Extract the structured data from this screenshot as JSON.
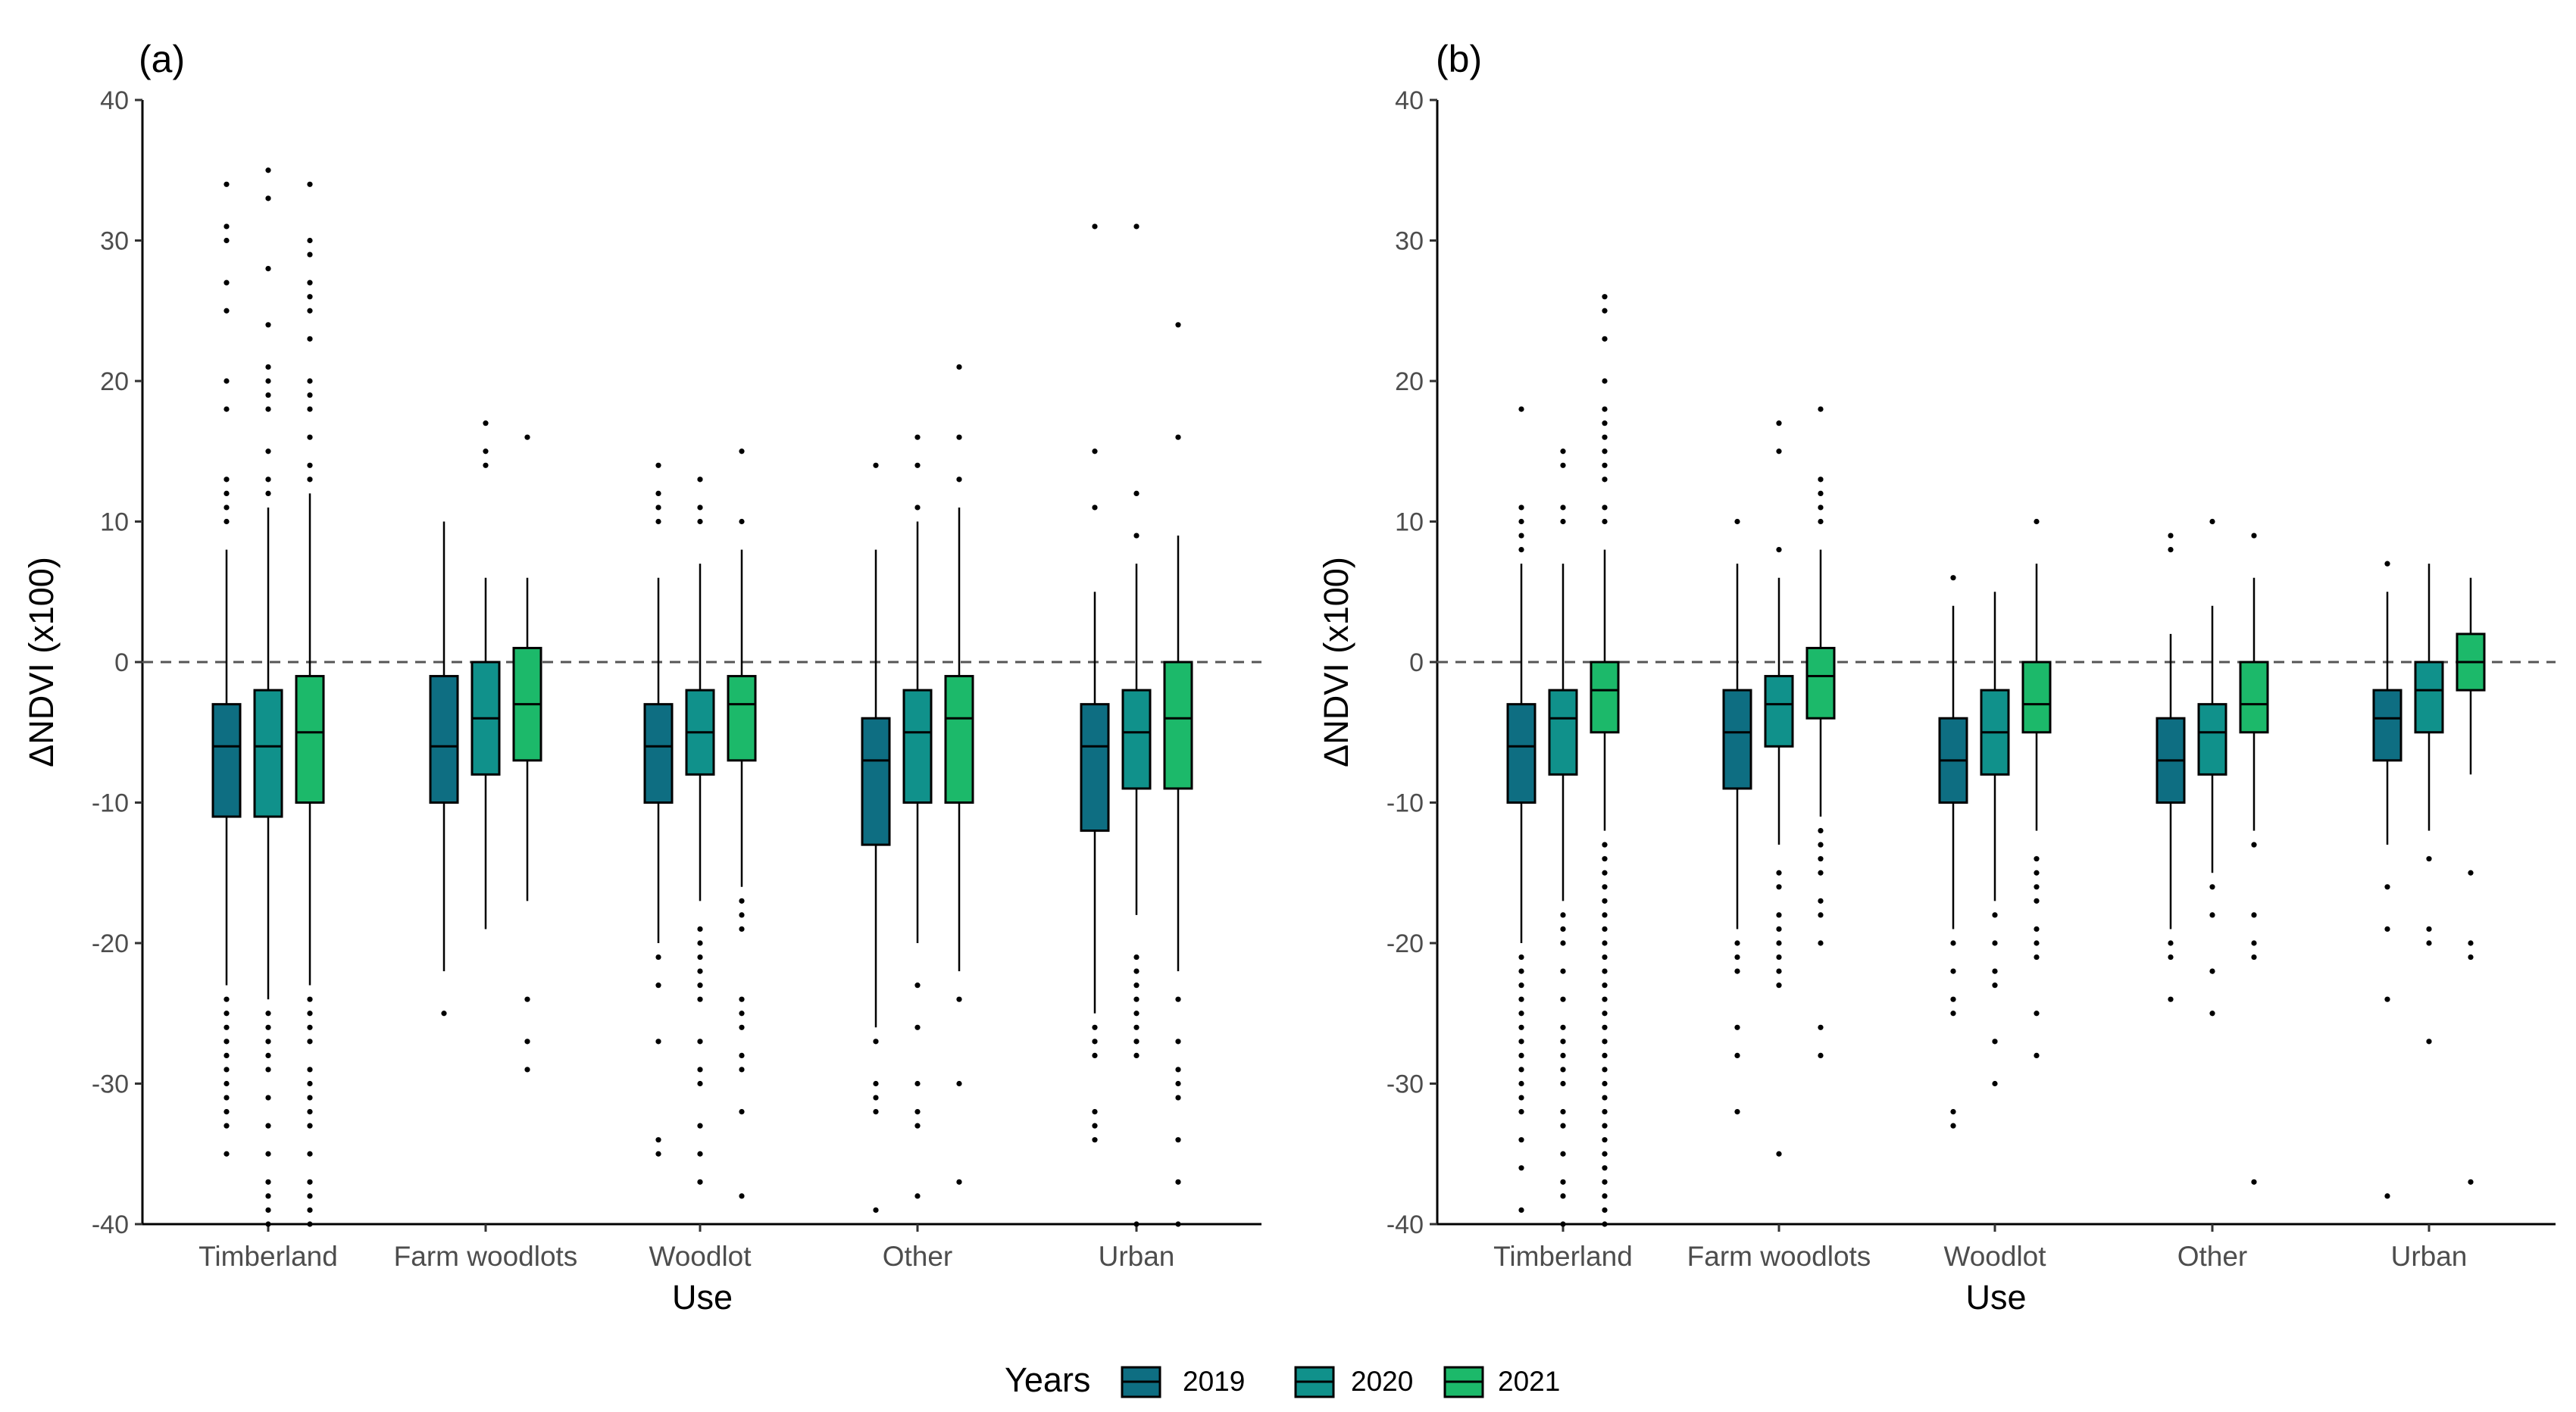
{
  "chart_data": [
    {
      "type": "box",
      "panel_label": "(a)",
      "xlabel": "Use",
      "ylabel": "ΔNDVI (x100)",
      "ylim": [
        -40,
        40
      ],
      "yticks": [
        40,
        30,
        20,
        10,
        0,
        -10,
        -20,
        -30,
        -40
      ],
      "reference_line": 0,
      "categories": [
        "Timberland",
        "Farm woodlots",
        "Woodlot",
        "Other",
        "Urban"
      ],
      "series": [
        {
          "name": "2019",
          "boxes": [
            {
              "q1": -11,
              "median": -6,
              "q3": -3,
              "lower": -23,
              "upper": 8,
              "outliers": [
                34,
                31,
                30,
                27,
                25,
                20,
                18,
                13,
                12,
                11,
                10,
                -24,
                -25,
                -26,
                -27,
                -28,
                -29,
                -30,
                -31,
                -32,
                -33,
                -35
              ]
            },
            {
              "q1": -10,
              "median": -6,
              "q3": -1,
              "lower": -22,
              "upper": 10,
              "outliers": [
                -25
              ]
            },
            {
              "q1": -10,
              "median": -6,
              "q3": -3,
              "lower": -20,
              "upper": 6,
              "outliers": [
                14,
                12,
                11,
                10,
                -21,
                -23,
                -27,
                -34,
                -35
              ]
            },
            {
              "q1": -13,
              "median": -7,
              "q3": -4,
              "lower": -26,
              "upper": 8,
              "outliers": [
                14,
                -27,
                -30,
                -31,
                -32,
                -39
              ]
            },
            {
              "q1": -12,
              "median": -6,
              "q3": -3,
              "lower": -25,
              "upper": 5,
              "outliers": [
                31,
                15,
                11,
                -26,
                -27,
                -28,
                -32,
                -33,
                -34
              ]
            }
          ]
        },
        {
          "name": "2020",
          "boxes": [
            {
              "q1": -11,
              "median": -6,
              "q3": -2,
              "lower": -24,
              "upper": 11,
              "outliers": [
                35,
                33,
                28,
                24,
                21,
                20,
                19,
                18,
                15,
                13,
                12,
                -25,
                -26,
                -27,
                -28,
                -29,
                -31,
                -33,
                -35,
                -37,
                -38,
                -39,
                -40
              ]
            },
            {
              "q1": -8,
              "median": -4,
              "q3": 0,
              "lower": -19,
              "upper": 6,
              "outliers": [
                17,
                15,
                14
              ]
            },
            {
              "q1": -8,
              "median": -5,
              "q3": -2,
              "lower": -17,
              "upper": 7,
              "outliers": [
                13,
                11,
                10,
                -19,
                -20,
                -21,
                -22,
                -23,
                -24,
                -27,
                -29,
                -30,
                -33,
                -35,
                -37
              ]
            },
            {
              "q1": -10,
              "median": -5,
              "q3": -2,
              "lower": -20,
              "upper": 10,
              "outliers": [
                16,
                14,
                11,
                -23,
                -26,
                -30,
                -32,
                -33,
                -38
              ]
            },
            {
              "q1": -9,
              "median": -5,
              "q3": -2,
              "lower": -18,
              "upper": 7,
              "outliers": [
                31,
                12,
                9,
                -21,
                -22,
                -23,
                -24,
                -25,
                -26,
                -27,
                -28,
                -40
              ]
            }
          ]
        },
        {
          "name": "2021",
          "boxes": [
            {
              "q1": -10,
              "median": -5,
              "q3": -1,
              "lower": -23,
              "upper": 12,
              "outliers": [
                34,
                30,
                29,
                27,
                26,
                25,
                23,
                20,
                19,
                18,
                16,
                14,
                13,
                -24,
                -25,
                -26,
                -27,
                -29,
                -30,
                -31,
                -32,
                -33,
                -35,
                -37,
                -38,
                -39,
                -40
              ]
            },
            {
              "q1": -7,
              "median": -3,
              "q3": 1,
              "lower": -17,
              "upper": 6,
              "outliers": [
                16,
                -24,
                -27,
                -29
              ]
            },
            {
              "q1": -7,
              "median": -3,
              "q3": -1,
              "lower": -16,
              "upper": 8,
              "outliers": [
                15,
                10,
                -17,
                -18,
                -19,
                -24,
                -25,
                -26,
                -28,
                -29,
                -32,
                -38
              ]
            },
            {
              "q1": -10,
              "median": -4,
              "q3": -1,
              "lower": -22,
              "upper": 11,
              "outliers": [
                21,
                16,
                13,
                -24,
                -30,
                -37
              ]
            },
            {
              "q1": -9,
              "median": -4,
              "q3": 0,
              "lower": -22,
              "upper": 9,
              "outliers": [
                24,
                16,
                -24,
                -27,
                -29,
                -30,
                -31,
                -34,
                -37,
                -40
              ]
            }
          ]
        }
      ]
    },
    {
      "type": "box",
      "panel_label": "(b)",
      "xlabel": "Use",
      "ylabel": "ΔNDVI (x100)",
      "ylim": [
        -40,
        40
      ],
      "yticks": [
        40,
        30,
        20,
        10,
        0,
        -10,
        -20,
        -30,
        -40
      ],
      "reference_line": 0,
      "categories": [
        "Timberland",
        "Farm woodlots",
        "Woodlot",
        "Other",
        "Urban"
      ],
      "series": [
        {
          "name": "2019",
          "boxes": [
            {
              "q1": -10,
              "median": -6,
              "q3": -3,
              "lower": -20,
              "upper": 7,
              "outliers": [
                18,
                11,
                10,
                9,
                8,
                -21,
                -22,
                -23,
                -24,
                -25,
                -26,
                -27,
                -28,
                -29,
                -30,
                -31,
                -32,
                -34,
                -36,
                -39
              ]
            },
            {
              "q1": -9,
              "median": -5,
              "q3": -2,
              "lower": -19,
              "upper": 7,
              "outliers": [
                10,
                -20,
                -21,
                -22,
                -26,
                -28,
                -32
              ]
            },
            {
              "q1": -10,
              "median": -7,
              "q3": -4,
              "lower": -19,
              "upper": 4,
              "outliers": [
                6,
                -20,
                -22,
                -24,
                -25,
                -32,
                -33
              ]
            },
            {
              "q1": -10,
              "median": -7,
              "q3": -4,
              "lower": -19,
              "upper": 2,
              "outliers": [
                9,
                8,
                -20,
                -21,
                -24
              ]
            },
            {
              "q1": -7,
              "median": -4,
              "q3": -2,
              "lower": -13,
              "upper": 5,
              "outliers": [
                7,
                -16,
                -19,
                -24,
                -38
              ]
            }
          ]
        },
        {
          "name": "2020",
          "boxes": [
            {
              "q1": -8,
              "median": -4,
              "q3": -2,
              "lower": -17,
              "upper": 7,
              "outliers": [
                15,
                14,
                11,
                10,
                -18,
                -19,
                -20,
                -22,
                -24,
                -26,
                -27,
                -28,
                -29,
                -30,
                -32,
                -33,
                -35,
                -37,
                -38,
                -40
              ]
            },
            {
              "q1": -6,
              "median": -3,
              "q3": -1,
              "lower": -13,
              "upper": 6,
              "outliers": [
                17,
                15,
                8,
                -15,
                -16,
                -18,
                -19,
                -20,
                -21,
                -22,
                -23,
                -35
              ]
            },
            {
              "q1": -8,
              "median": -5,
              "q3": -2,
              "lower": -17,
              "upper": 5,
              "outliers": [
                -18,
                -20,
                -22,
                -23,
                -27,
                -30
              ]
            },
            {
              "q1": -8,
              "median": -5,
              "q3": -3,
              "lower": -15,
              "upper": 4,
              "outliers": [
                10,
                -16,
                -18,
                -22,
                -25
              ]
            },
            {
              "q1": -5,
              "median": -2,
              "q3": 0,
              "lower": -12,
              "upper": 7,
              "outliers": [
                -14,
                -19,
                -20,
                -27
              ]
            }
          ]
        },
        {
          "name": "2021",
          "boxes": [
            {
              "q1": -5,
              "median": -2,
              "q3": 0,
              "lower": -12,
              "upper": 8,
              "outliers": [
                26,
                25,
                23,
                20,
                18,
                17,
                16,
                15,
                14,
                13,
                11,
                10,
                -13,
                -14,
                -15,
                -16,
                -17,
                -18,
                -19,
                -20,
                -21,
                -22,
                -23,
                -24,
                -25,
                -26,
                -27,
                -28,
                -29,
                -30,
                -31,
                -32,
                -33,
                -34,
                -35,
                -36,
                -37,
                -38,
                -39,
                -40
              ]
            },
            {
              "q1": -4,
              "median": -1,
              "q3": 1,
              "lower": -11,
              "upper": 8,
              "outliers": [
                18,
                13,
                12,
                11,
                10,
                -12,
                -13,
                -14,
                -15,
                -17,
                -18,
                -20,
                -26,
                -28
              ]
            },
            {
              "q1": -5,
              "median": -3,
              "q3": 0,
              "lower": -12,
              "upper": 7,
              "outliers": [
                10,
                -14,
                -15,
                -16,
                -17,
                -19,
                -20,
                -21,
                -25,
                -28
              ]
            },
            {
              "q1": -5,
              "median": -3,
              "q3": 0,
              "lower": -12,
              "upper": 6,
              "outliers": [
                9,
                -13,
                -18,
                -20,
                -21,
                -37
              ]
            },
            {
              "q1": -2,
              "median": 0,
              "q3": 2,
              "lower": -8,
              "upper": 6,
              "outliers": [
                -15,
                -20,
                -21,
                -37
              ]
            }
          ]
        }
      ]
    }
  ],
  "legend": {
    "title": "Years",
    "items": [
      {
        "label": "2019",
        "color": "#0e6e82"
      },
      {
        "label": "2020",
        "color": "#10918b"
      },
      {
        "label": "2021",
        "color": "#1cb96a"
      }
    ]
  }
}
